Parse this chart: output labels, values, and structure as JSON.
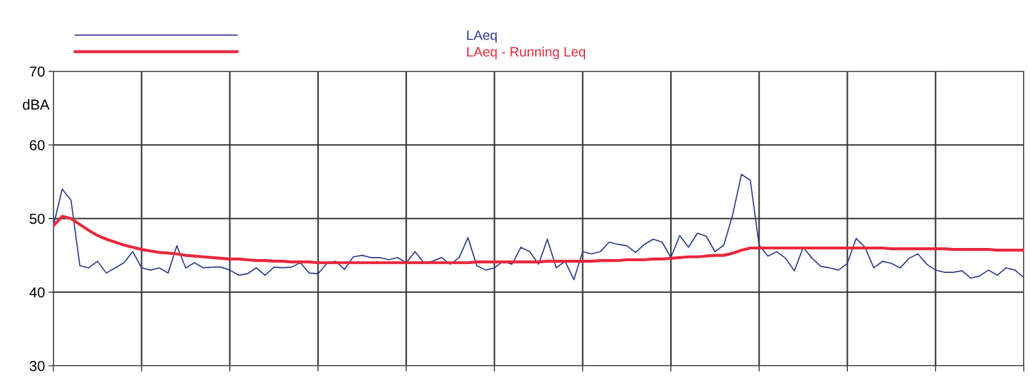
{
  "chart_data": {
    "type": "line",
    "ylabel": "dBA",
    "categories": [
      null,
      null,
      null,
      null,
      null,
      null,
      null,
      null,
      null,
      null,
      null,
      null,
      null,
      null,
      null,
      null,
      null,
      null,
      null,
      null,
      null,
      null,
      null,
      null,
      null,
      null,
      null,
      null,
      null,
      null,
      null,
      null,
      null,
      null,
      null,
      null,
      null,
      null,
      null,
      null,
      null,
      null,
      null,
      null,
      null,
      null,
      null,
      null,
      null,
      null,
      null,
      null,
      null,
      null,
      null,
      null,
      null,
      null,
      null,
      null,
      null,
      null,
      null,
      null,
      null,
      null,
      null,
      null,
      null,
      null,
      null,
      null,
      null,
      null,
      null,
      null,
      null,
      null,
      null,
      null,
      null,
      null,
      null,
      null,
      null,
      null,
      null,
      null,
      null,
      null,
      null,
      null,
      null,
      null,
      null,
      null,
      null,
      null,
      null,
      null,
      null,
      null,
      null,
      null,
      null,
      null,
      null,
      null,
      null,
      null,
      null
    ],
    "series": [
      {
        "name": "LAeq",
        "color": "#2a3a8c",
        "values": [
          49,
          54,
          52.5,
          43.6,
          43.3,
          44.2,
          42.6,
          43.3,
          44.0,
          45.5,
          43.3,
          43.0,
          43.3,
          42.6,
          46.3,
          43.3,
          44.0,
          43.3,
          43.4,
          43.4,
          43.0,
          42.3,
          42.5,
          43.3,
          42.3,
          43.4,
          43.3,
          43.4,
          44.0,
          42.6,
          42.5,
          43.9,
          44.2,
          43.1,
          44.8,
          45.0,
          44.7,
          44.7,
          44.4,
          44.7,
          44.0,
          45.5,
          44.0,
          44.2,
          44.7,
          43.8,
          44.7,
          47.4,
          43.6,
          43.0,
          43.3,
          44.2,
          43.8,
          46.1,
          45.5,
          43.8,
          47.2,
          43.3,
          44.2,
          41.7,
          45.5,
          45.2,
          45.5,
          46.8,
          46.5,
          46.3,
          45.4,
          46.5,
          47.2,
          46.8,
          44.7,
          47.7,
          46.1,
          48.0,
          47.6,
          45.5,
          46.4,
          50.5,
          56.0,
          55.2,
          46.4,
          44.9,
          45.5,
          44.6,
          42.9,
          46.1,
          44.6,
          43.5,
          43.3,
          43.0,
          43.9,
          47.3,
          46.1,
          43.3,
          44.2,
          43.9,
          43.3,
          44.6,
          45.2,
          43.8,
          43.0,
          42.7,
          42.7,
          42.9,
          41.9,
          42.2,
          43.0,
          42.3,
          43.3,
          43.0,
          42.0
        ]
      },
      {
        "name": "LAeq - Running Leq",
        "color": "#e8283c",
        "values": [
          49.0,
          50.3,
          50.0,
          49.2,
          48.4,
          47.7,
          47.2,
          46.8,
          46.4,
          46.1,
          45.8,
          45.6,
          45.4,
          45.3,
          45.2,
          45.0,
          44.9,
          44.8,
          44.7,
          44.6,
          44.5,
          44.5,
          44.4,
          44.3,
          44.3,
          44.2,
          44.2,
          44.1,
          44.1,
          44.1,
          44.0,
          44.0,
          44.0,
          44.0,
          44.0,
          44.0,
          44.0,
          44.0,
          44.0,
          44.0,
          44.0,
          44.0,
          44.0,
          44.0,
          44.0,
          44.0,
          44.0,
          44.0,
          44.1,
          44.1,
          44.1,
          44.1,
          44.1,
          44.1,
          44.1,
          44.1,
          44.2,
          44.2,
          44.2,
          44.2,
          44.2,
          44.2,
          44.3,
          44.3,
          44.3,
          44.4,
          44.4,
          44.4,
          44.5,
          44.5,
          44.6,
          44.7,
          44.8,
          44.8,
          44.9,
          45.0,
          45.0,
          45.3,
          45.7,
          46.0,
          46.0,
          46.0,
          46.0,
          46.0,
          46.0,
          46.0,
          46.0,
          46.0,
          46.0,
          46.0,
          46.0,
          46.0,
          46.0,
          46.0,
          46.0,
          45.9,
          45.9,
          45.9,
          45.9,
          45.9,
          45.9,
          45.9,
          45.8,
          45.8,
          45.8,
          45.8,
          45.8,
          45.7,
          45.7,
          45.7,
          45.7
        ]
      }
    ],
    "ylim": [
      30,
      70
    ],
    "yticks": [
      30,
      40,
      50,
      60,
      70
    ],
    "grid": true,
    "legend": "top left",
    "tick_labels": "y",
    "line_style": "solid",
    "marker": "none"
  }
}
